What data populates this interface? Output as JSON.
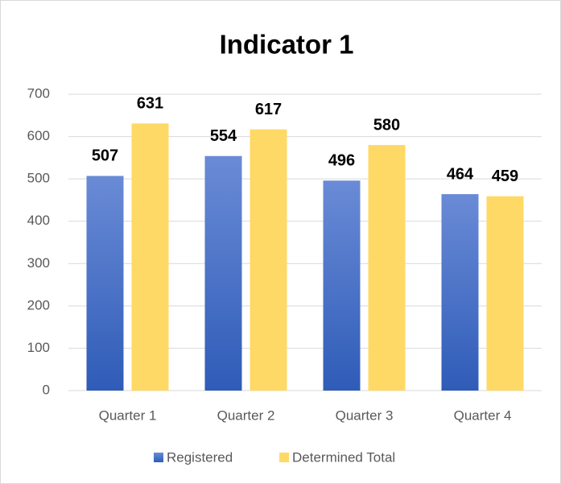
{
  "chart_data": {
    "type": "bar",
    "title": "Indicator 1",
    "categories": [
      "Quarter 1",
      "Quarter 2",
      "Quarter 3",
      "Quarter 4"
    ],
    "series": [
      {
        "name": "Registered",
        "color": "#4472c4",
        "values": [
          507,
          554,
          496,
          464
        ]
      },
      {
        "name": "Determined Total",
        "color": "#ffd966",
        "values": [
          631,
          617,
          580,
          459
        ]
      }
    ],
    "ylim": [
      0,
      700
    ],
    "yticks": [
      0,
      100,
      200,
      300,
      400,
      500,
      600,
      700
    ],
    "grid": true,
    "legend": "bottom"
  }
}
